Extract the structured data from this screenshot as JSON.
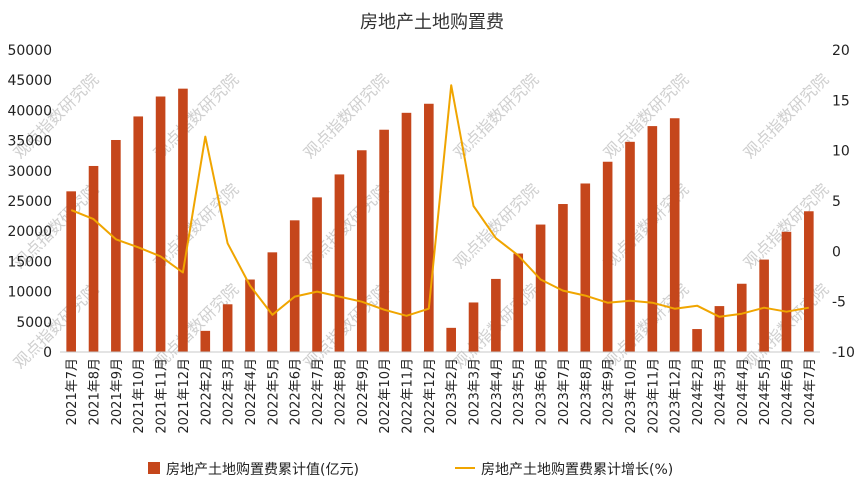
{
  "chart_data": {
    "type": "bar",
    "title": "房地产土地购置费",
    "categories": [
      "2021年7月",
      "2021年8月",
      "2021年9月",
      "2021年10月",
      "2021年11月",
      "2021年12月",
      "2022年2月",
      "2022年3月",
      "2022年4月",
      "2022年5月",
      "2022年6月",
      "2022年7月",
      "2022年8月",
      "2022年9月",
      "2022年10月",
      "2022年11月",
      "2022年12月",
      "2023年2月",
      "2023年3月",
      "2023年4月",
      "2023年5月",
      "2023年6月",
      "2023年7月",
      "2023年8月",
      "2023年9月",
      "2023年10月",
      "2023年11月",
      "2023年12月",
      "2024年2月",
      "2024年3月",
      "2024年4月",
      "2024年5月",
      "2024年6月",
      "2024年7月"
    ],
    "series": [
      {
        "name": "房地产土地购置费累计值(亿元)",
        "type": "bar",
        "axis": "left",
        "color": "#c5461b",
        "values": [
          26600,
          30800,
          35100,
          39000,
          42300,
          43600,
          3500,
          7900,
          12000,
          16500,
          21800,
          25600,
          29400,
          33400,
          36800,
          39600,
          41100,
          4000,
          8200,
          12100,
          16300,
          21100,
          24500,
          27900,
          31500,
          34800,
          37400,
          38700,
          3800,
          7600,
          11300,
          15300,
          19900,
          23300
        ]
      },
      {
        "name": "房地产土地购置费累计增长(%)",
        "type": "line",
        "axis": "right",
        "color": "#f0a500",
        "values": [
          4.1,
          3.2,
          1.2,
          0.4,
          -0.5,
          -2.1,
          11.4,
          0.8,
          -3.4,
          -6.3,
          -4.5,
          -4,
          -4.5,
          -5,
          -5.8,
          -6.4,
          -5.7,
          16.5,
          4.5,
          1.3,
          -0.4,
          -2.8,
          -3.9,
          -4.4,
          -5.1,
          -4.9,
          -5.1,
          -5.7,
          -5.4,
          -6.5,
          -6.2,
          -5.6,
          -6,
          -5.6
        ]
      }
    ],
    "y_left": {
      "ylim": [
        0,
        50000
      ],
      "ticks": [
        0,
        5000,
        10000,
        15000,
        20000,
        25000,
        30000,
        35000,
        40000,
        45000,
        50000
      ]
    },
    "y_right": {
      "ylim": [
        -10,
        20
      ],
      "ticks": [
        -10,
        -5,
        0,
        5,
        10,
        15,
        20
      ]
    },
    "grid": false,
    "legend_position": "bottom"
  },
  "watermark": "观点指数研究院"
}
